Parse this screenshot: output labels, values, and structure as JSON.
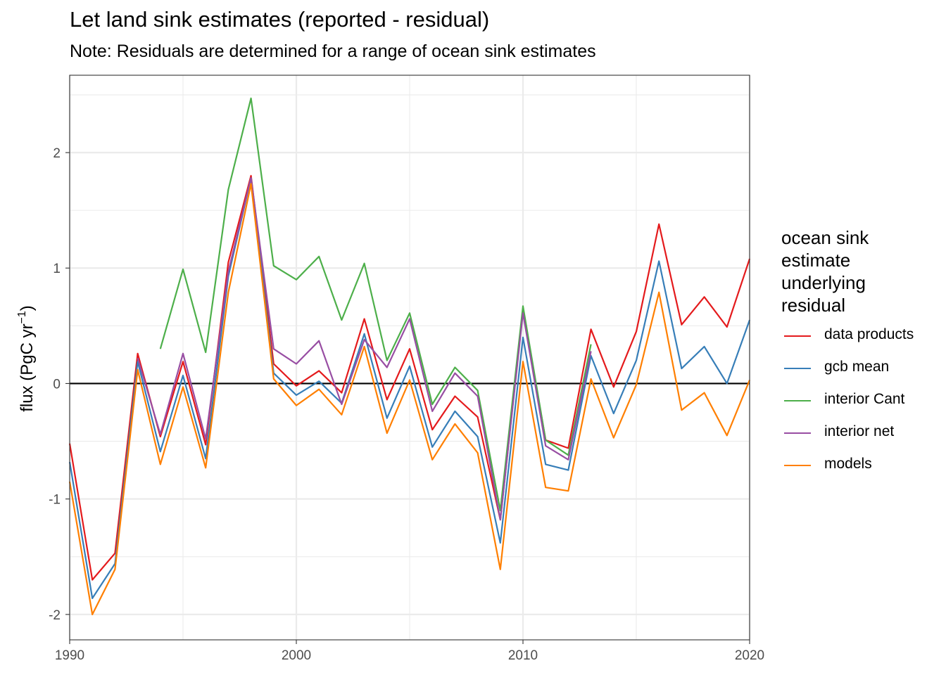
{
  "chart_data": {
    "type": "line",
    "title": "Let land sink estimates (reported - residual)",
    "subtitle": "Note: Residuals are determined for a range of ocean sink estimates",
    "xlabel": "",
    "ylabel": "flux (PgC yr",
    "ylabel_superscript": "−1",
    "ylabel_close": ")",
    "xlim": [
      1990,
      2020
    ],
    "ylim": [
      -2.22,
      2.67
    ],
    "x_ticks": [
      1990,
      2000,
      2010,
      2020
    ],
    "y_ticks": [
      -2,
      -1,
      0,
      1,
      2
    ],
    "x_tick_labels": [
      "1990",
      "2000",
      "2010",
      "2020"
    ],
    "y_tick_labels": [
      "-2",
      "-1",
      "0",
      "1",
      "2"
    ],
    "grid": true,
    "zero_line": true,
    "legend_title": "ocean sink estimate underlying residual",
    "legend_position": "right",
    "series": [
      {
        "name": "data products",
        "color": "#E41A1C",
        "x": [
          1990,
          1991,
          1992,
          1993,
          1994,
          1995,
          1996,
          1997,
          1998,
          1999,
          2000,
          2001,
          2002,
          2003,
          2004,
          2005,
          2006,
          2007,
          2008,
          2009,
          2010,
          2011,
          2012,
          2013,
          2014,
          2015,
          2016,
          2017,
          2018,
          2019,
          2020
        ],
        "values": [
          -0.52,
          -1.7,
          -1.47,
          0.26,
          -0.46,
          0.19,
          -0.53,
          1.05,
          1.8,
          0.17,
          -0.02,
          0.11,
          -0.08,
          0.56,
          -0.14,
          0.3,
          -0.4,
          -0.11,
          -0.29,
          -1.18,
          0.63,
          -0.49,
          -0.56,
          0.47,
          -0.03,
          0.45,
          1.38,
          0.51,
          0.75,
          0.49,
          1.08
        ]
      },
      {
        "name": "gcb mean",
        "color": "#377EB8",
        "x": [
          1990,
          1991,
          1992,
          1993,
          1994,
          1995,
          1996,
          1997,
          1998,
          1999,
          2000,
          2001,
          2002,
          2003,
          2004,
          2005,
          2006,
          2007,
          2008,
          2009,
          2010,
          2011,
          2012,
          2013,
          2014,
          2015,
          2016,
          2017,
          2018,
          2019,
          2020
        ],
        "values": [
          -0.68,
          -1.86,
          -1.56,
          0.19,
          -0.59,
          0.07,
          -0.65,
          0.93,
          1.78,
          0.09,
          -0.1,
          0.02,
          -0.17,
          0.43,
          -0.3,
          0.15,
          -0.55,
          -0.24,
          -0.46,
          -1.38,
          0.4,
          -0.7,
          -0.75,
          0.24,
          -0.26,
          0.2,
          1.06,
          0.13,
          0.32,
          0.0,
          0.55
        ]
      },
      {
        "name": "interior Cant",
        "color": "#4DAF4A",
        "x": [
          1994,
          1995,
          1996,
          1997,
          1998,
          1999,
          2000,
          2001,
          2002,
          2003,
          2004,
          2005,
          2006,
          2007,
          2008,
          2009,
          2010,
          2011,
          2012,
          2013
        ],
        "values": [
          0.3,
          0.99,
          0.27,
          1.68,
          2.47,
          1.02,
          0.9,
          1.1,
          0.55,
          1.04,
          0.2,
          0.61,
          -0.18,
          0.14,
          -0.06,
          -1.1,
          0.67,
          -0.49,
          -0.62,
          0.34
        ]
      },
      {
        "name": "interior net",
        "color": "#984EA3",
        "x": [
          1993,
          1994,
          1995,
          1996,
          1997,
          1998,
          1999,
          2000,
          2001,
          2002,
          2003,
          2004,
          2005,
          2006,
          2007,
          2008,
          2009,
          2010,
          2011,
          2012,
          2013
        ],
        "values": [
          0.22,
          -0.44,
          0.26,
          -0.48,
          0.97,
          1.78,
          0.3,
          0.17,
          0.37,
          -0.18,
          0.38,
          0.14,
          0.56,
          -0.24,
          0.09,
          -0.11,
          -1.18,
          0.61,
          -0.54,
          -0.66,
          0.28
        ]
      },
      {
        "name": "models",
        "color": "#FF7F00",
        "x": [
          1990,
          1991,
          1992,
          1993,
          1994,
          1995,
          1996,
          1997,
          1998,
          1999,
          2000,
          2001,
          2002,
          2003,
          2004,
          2005,
          2006,
          2007,
          2008,
          2009,
          2010,
          2011,
          2012,
          2013,
          2014,
          2015,
          2016,
          2017,
          2018,
          2019,
          2020
        ],
        "values": [
          -0.85,
          -2.0,
          -1.61,
          0.12,
          -0.7,
          -0.03,
          -0.73,
          0.79,
          1.73,
          0.04,
          -0.19,
          -0.05,
          -0.27,
          0.32,
          -0.43,
          0.03,
          -0.66,
          -0.35,
          -0.6,
          -1.61,
          0.19,
          -0.9,
          -0.93,
          0.04,
          -0.47,
          -0.01,
          0.79,
          -0.23,
          -0.08,
          -0.45,
          0.03
        ]
      }
    ]
  }
}
